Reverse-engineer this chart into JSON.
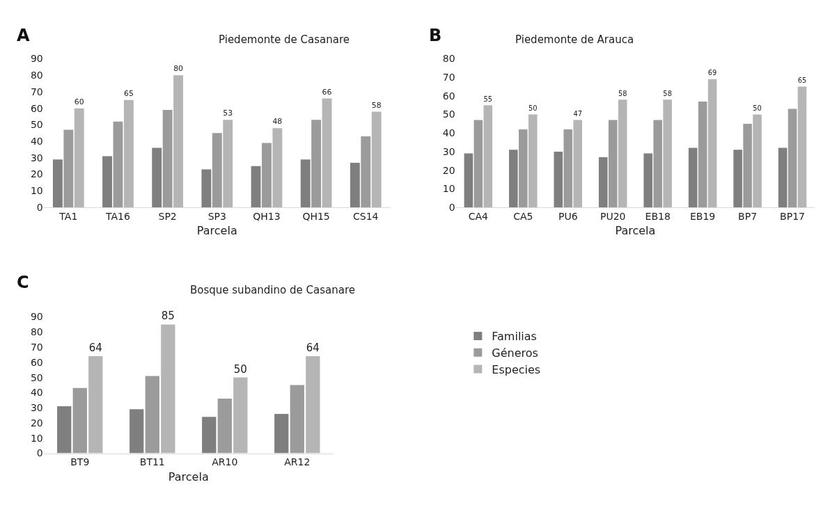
{
  "chart_data": [
    {
      "type": "bar",
      "title": "Piedemonte de Casanare",
      "xlabel": "Parcela",
      "annotations": [
        "A"
      ],
      "categories": [
        "TA1",
        "TA16",
        "SP2",
        "SP3",
        "QH13",
        "QH15",
        "CS14"
      ],
      "ylim": [
        0,
        90
      ],
      "yticks": [
        0,
        10,
        20,
        30,
        40,
        50,
        60,
        70,
        80,
        90
      ],
      "grid": false,
      "legend": false,
      "series": [
        {
          "color": "#7f7f7f",
          "values": [
            29,
            31,
            36,
            23,
            25,
            29,
            27
          ]
        },
        {
          "color": "#9b9b9b",
          "values": [
            47,
            52,
            59,
            45,
            39,
            53,
            43
          ]
        },
        {
          "color": "#b5b5b5",
          "values": [
            60,
            65,
            80,
            53,
            48,
            66,
            58
          ],
          "value_labels": [
            "60",
            "65",
            "80",
            "53",
            "48",
            "66",
            "58"
          ]
        }
      ]
    },
    {
      "type": "bar",
      "title": "Piedemonte de Arauca",
      "xlabel": "Parcela",
      "annotations": [
        "B"
      ],
      "categories": [
        "CA4",
        "CA5",
        "PU6",
        "PU20",
        "EB18",
        "EB19",
        "BP7",
        "BP17"
      ],
      "ylim": [
        0,
        80
      ],
      "yticks": [
        0,
        10,
        20,
        30,
        40,
        50,
        60,
        70,
        80
      ],
      "grid": false,
      "legend": false,
      "series": [
        {
          "color": "#7f7f7f",
          "values": [
            29,
            31,
            30,
            27,
            29,
            32,
            31,
            32
          ]
        },
        {
          "color": "#9b9b9b",
          "values": [
            47,
            42,
            42,
            47,
            47,
            57,
            45,
            53
          ]
        },
        {
          "color": "#b5b5b5",
          "values": [
            55,
            50,
            47,
            58,
            58,
            69,
            50,
            65
          ],
          "value_labels": [
            "55",
            "50",
            "47",
            "58",
            "58",
            "69",
            "50",
            "65"
          ]
        }
      ]
    },
    {
      "type": "bar",
      "title": "Bosque subandino de Casanare",
      "xlabel": "Parcela",
      "annotations": [
        "C"
      ],
      "categories": [
        "BT9",
        "BT11",
        "AR10",
        "AR12"
      ],
      "ylim": [
        0,
        90
      ],
      "yticks": [
        0,
        10,
        20,
        30,
        40,
        50,
        60,
        70,
        80,
        90
      ],
      "grid": false,
      "legend": "right",
      "series": [
        {
          "name": "Familias",
          "color": "#7f7f7f",
          "values": [
            31,
            29,
            24,
            26
          ]
        },
        {
          "name": "Géneros",
          "color": "#9b9b9b",
          "values": [
            43,
            51,
            36,
            45
          ]
        },
        {
          "name": "Especies",
          "color": "#b5b5b5",
          "values": [
            64,
            85,
            50,
            64
          ],
          "value_labels": [
            "64",
            "85",
            "50",
            "64"
          ]
        }
      ]
    }
  ]
}
